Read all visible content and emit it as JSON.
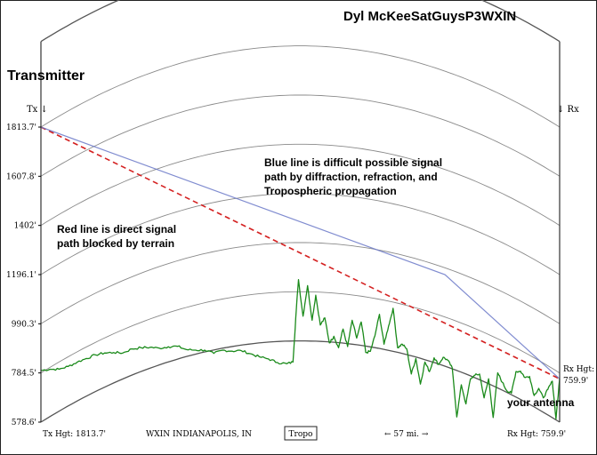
{
  "header": {
    "title": "Dyl McKeeSatGuysP3WXIN",
    "transmitter_label": "Transmitter"
  },
  "markers": {
    "tx": "Tx ↓",
    "rx": "↓ Rx"
  },
  "annotations": {
    "blue_line_note": [
      "Blue line is difficult possible signal",
      "path by diffraction, refraction, and",
      "Tropospheric propagation"
    ],
    "red_line_note": [
      "Red line is direct signal",
      "path blocked by terrain"
    ],
    "antenna_note": "your antenna"
  },
  "rx_height_label": [
    "Rx Hgt:",
    "759.9'"
  ],
  "footer": {
    "tx_height": "Tx Hgt: 1813.7'",
    "station": "WXIN INDIANAPOLIS, IN",
    "mode_button": "Tropo",
    "distance": "← 57 mi. →",
    "rx_height": "Rx Hgt: 759.9'"
  },
  "colors": {
    "terrain": "#1a8a1a",
    "direct_path": "#d42020",
    "diffraction_path": "#6a78c8",
    "earth_curve": "#8a8a8a",
    "frame": "#333333"
  },
  "chart_data": {
    "type": "line",
    "title": "Dyl McKeeSatGuysP3WXIN",
    "xlabel": "← 57 mi. →",
    "ylabel": "",
    "x_range_mi": [
      0,
      57
    ],
    "ylim": [
      578.6,
      1813.7
    ],
    "y_ticks": [
      "1813.7'",
      "1607.8'",
      "1402'",
      "1196.1'",
      "990.3'",
      "784.5'",
      "578.6'"
    ],
    "y_tick_values": [
      1813.7,
      1607.8,
      1402.0,
      1196.1,
      990.3,
      784.5,
      578.6
    ],
    "earth_curvature_bulge_ft": 340,
    "series": [
      {
        "type": "terrain",
        "x_mi": [
          0,
          1,
          2,
          3,
          4,
          5,
          6,
          7,
          8,
          9,
          10,
          11,
          12,
          13,
          14,
          15,
          16,
          17,
          18,
          19,
          20,
          21,
          22,
          23,
          24,
          25,
          26,
          27,
          27.7,
          28,
          28.3,
          28.8,
          29.3,
          29.8,
          30.2,
          30.7,
          31.2,
          31.7,
          32.2,
          32.7,
          33.2,
          33.7,
          34.2,
          34.7,
          35.2,
          35.7,
          36.2,
          36.7,
          37.2,
          37.7,
          38.2,
          38.7,
          39.2,
          39.7,
          40.2,
          40.7,
          41.2,
          41.7,
          42.2,
          42.7,
          43.2,
          43.7,
          44.2,
          44.7,
          45.2,
          45.7,
          46.2,
          46.7,
          47.2,
          47.7,
          48.2,
          48.7,
          49.2,
          49.7,
          50.2,
          50.7,
          51.2,
          51.7,
          52.2,
          52.7,
          53.2,
          53.7,
          54.2,
          54.7,
          55.2,
          55.7,
          56.2,
          56.6,
          57.0
        ],
        "elevation_ft": [
          795,
          800,
          800,
          812,
          830,
          845,
          860,
          868,
          870,
          868,
          885,
          890,
          892,
          888,
          894,
          896,
          882,
          880,
          880,
          866,
          880,
          876,
          878,
          865,
          852,
          843,
          828,
          823,
          830,
          1015,
          1175,
          1022,
          1150,
          1005,
          1110,
          985,
          1015,
          910,
          938,
          890,
          968,
          895,
          1005,
          930,
          998,
          870,
          875,
          940,
          1030,
          905,
          980,
          1055,
          890,
          905,
          885,
          780,
          845,
          738,
          830,
          790,
          848,
          820,
          850,
          838,
          805,
          600,
          735,
          655,
          760,
          775,
          780,
          680,
          760,
          598,
          785,
          745,
          710,
          700,
          790,
          792,
          765,
          770,
          690,
          720,
          680,
          715,
          750,
          592,
          760.0
        ]
      },
      {
        "type": "direct_path",
        "x_mi": [
          0,
          57
        ],
        "elevation_ft": [
          1813.7,
          759.9
        ]
      },
      {
        "type": "diffraction_path",
        "x_mi": [
          0,
          44.4,
          57
        ],
        "elevation_ft": [
          1813.7,
          1196.0,
          759.9
        ]
      }
    ]
  }
}
